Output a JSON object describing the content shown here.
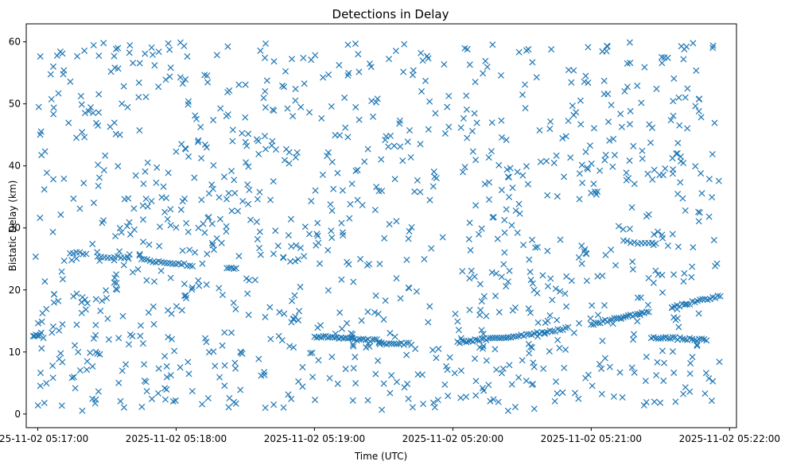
{
  "chart_data": {
    "type": "scatter",
    "title": "Detections in Delay",
    "xlabel": "Time (UTC)",
    "ylabel": "Bistatic Delay (km)",
    "marker": "x",
    "color": "#1f77b4",
    "grid": false,
    "xlim": [
      "2025-11-02 05:16:55",
      "2025-11-02 05:22:03"
    ],
    "ylim": [
      -2.2,
      62.9
    ],
    "xticks": [
      {
        "value": "2025-11-02 05:17:00",
        "label": "2025-11-02 05:17:00"
      },
      {
        "value": "2025-11-02 05:18:00",
        "label": "2025-11-02 05:18:00"
      },
      {
        "value": "2025-11-02 05:19:00",
        "label": "2025-11-02 05:19:00"
      },
      {
        "value": "2025-11-02 05:20:00",
        "label": "2025-11-02 05:20:00"
      },
      {
        "value": "2025-11-02 05:21:00",
        "label": "2025-11-02 05:21:00"
      },
      {
        "value": "2025-11-02 05:22:00",
        "label": "2025-11-02 05:22:00"
      }
    ],
    "yticks": [
      {
        "value": 0,
        "label": "0"
      },
      {
        "value": 10,
        "label": "10"
      },
      {
        "value": 20,
        "label": "20"
      },
      {
        "value": 30,
        "label": "30"
      },
      {
        "value": 40,
        "label": "40"
      },
      {
        "value": 50,
        "label": "50"
      },
      {
        "value": 60,
        "label": "60"
      }
    ],
    "tracks": [
      {
        "x": [
          "2025-11-02 05:16:58",
          "2025-11-02 05:17:01"
        ],
        "y": [
          12.7,
          12.7
        ],
        "points": 6
      },
      {
        "x": [
          "2025-11-02 05:17:14",
          "2025-11-02 05:17:21"
        ],
        "y": [
          26.0,
          25.9
        ],
        "points": 6
      },
      {
        "x": [
          "2025-11-02 05:17:26",
          "2025-11-02 05:17:39"
        ],
        "y": [
          25.3,
          25.3
        ],
        "points": 10
      },
      {
        "x": [
          "2025-11-02 05:17:45",
          "2025-11-02 05:18:06"
        ],
        "y": [
          24.9,
          24.0
        ],
        "points": 18
      },
      {
        "x": [
          "2025-11-02 05:18:22",
          "2025-11-02 05:18:26"
        ],
        "y": [
          23.6,
          23.5
        ],
        "points": 5
      },
      {
        "x": [
          "2025-11-02 05:19:00",
          "2025-11-02 05:19:28"
        ],
        "y": [
          12.5,
          11.8
        ],
        "points": 30
      },
      {
        "x": [
          "2025-11-02 05:19:28",
          "2025-11-02 05:19:42"
        ],
        "y": [
          11.4,
          11.3
        ],
        "points": 14
      },
      {
        "x": [
          "2025-11-02 05:20:02",
          "2025-11-02 05:20:24"
        ],
        "y": [
          11.6,
          12.4
        ],
        "points": 24
      },
      {
        "x": [
          "2025-11-02 05:20:24",
          "2025-11-02 05:20:50"
        ],
        "y": [
          12.4,
          13.8
        ],
        "points": 24
      },
      {
        "x": [
          "2025-11-02 05:21:00",
          "2025-11-02 05:21:25"
        ],
        "y": [
          14.5,
          16.5
        ],
        "points": 26
      },
      {
        "x": [
          "2025-11-02 05:21:14",
          "2025-11-02 05:21:28"
        ],
        "y": [
          27.8,
          27.4
        ],
        "points": 10
      },
      {
        "x": [
          "2025-11-02 05:21:26",
          "2025-11-02 05:21:50"
        ],
        "y": [
          12.4,
          11.9
        ],
        "points": 24
      },
      {
        "x": [
          "2025-11-02 05:21:35",
          "2025-11-02 05:21:56"
        ],
        "y": [
          17.2,
          19.0
        ],
        "points": 20
      }
    ],
    "clutter": {
      "x_range": [
        "2025-11-02 05:16:58",
        "2025-11-02 05:21:56"
      ],
      "y_range": [
        0.5,
        60.0
      ],
      "points": 1100
    }
  }
}
